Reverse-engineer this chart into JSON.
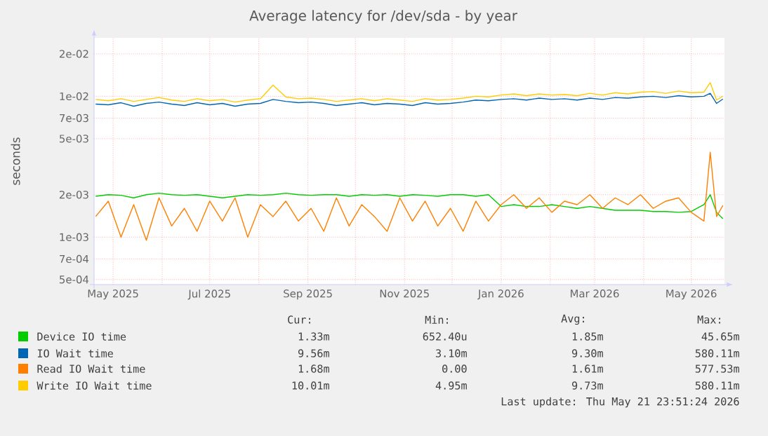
{
  "chart_data": {
    "type": "line",
    "title": "Average latency for /dev/sda - by year",
    "ylabel": "seconds",
    "log": true,
    "grid": true,
    "legend": "bottom",
    "marker": "none",
    "line_style": "solid",
    "xlim": [
      "2025-04-19",
      "2026-05-22"
    ],
    "xticks": [
      {
        "value": "2025-05-01",
        "label": "May 2025"
      },
      {
        "value": "2025-06-01",
        "label": null
      },
      {
        "value": "2025-07-01",
        "label": "Jul 2025"
      },
      {
        "value": "2025-08-01",
        "label": null
      },
      {
        "value": "2025-09-01",
        "label": "Sep 2025"
      },
      {
        "value": "2025-10-01",
        "label": null
      },
      {
        "value": "2025-11-01",
        "label": "Nov 2025"
      },
      {
        "value": "2025-12-01",
        "label": null
      },
      {
        "value": "2026-01-01",
        "label": "Jan 2026"
      },
      {
        "value": "2026-02-01",
        "label": null
      },
      {
        "value": "2026-03-01",
        "label": "Mar 2026"
      },
      {
        "value": "2026-04-01",
        "label": null
      },
      {
        "value": "2026-05-01",
        "label": "May 2026"
      }
    ],
    "ylim": [
      0.00046,
      0.026
    ],
    "yticks": [
      {
        "value": 0.0005,
        "label": "5e-04"
      },
      {
        "value": 0.0007,
        "label": "7e-04"
      },
      {
        "value": 0.001,
        "label": "1e-03"
      },
      {
        "value": 0.002,
        "label": "2e-03"
      },
      {
        "value": 0.005,
        "label": "5e-03"
      },
      {
        "value": 0.007,
        "label": "7e-03"
      },
      {
        "value": 0.01,
        "label": "1e-02"
      },
      {
        "value": 0.02,
        "label": "2e-02"
      }
    ],
    "x": [
      "2025-04-20",
      "2025-04-28",
      "2025-05-06",
      "2025-05-14",
      "2025-05-22",
      "2025-05-30",
      "2025-06-07",
      "2025-06-15",
      "2025-06-23",
      "2025-07-01",
      "2025-07-09",
      "2025-07-17",
      "2025-07-25",
      "2025-08-02",
      "2025-08-10",
      "2025-08-18",
      "2025-08-26",
      "2025-09-03",
      "2025-09-11",
      "2025-09-19",
      "2025-09-27",
      "2025-10-05",
      "2025-10-13",
      "2025-10-21",
      "2025-10-29",
      "2025-11-06",
      "2025-11-14",
      "2025-11-22",
      "2025-11-30",
      "2025-12-08",
      "2025-12-16",
      "2025-12-24",
      "2026-01-01",
      "2026-01-09",
      "2026-01-17",
      "2026-01-25",
      "2026-02-02",
      "2026-02-10",
      "2026-02-18",
      "2026-02-26",
      "2026-03-06",
      "2026-03-14",
      "2026-03-22",
      "2026-03-30",
      "2026-04-07",
      "2026-04-15",
      "2026-04-23",
      "2026-05-01",
      "2026-05-09",
      "2026-05-13",
      "2026-05-17",
      "2026-05-21"
    ],
    "series": [
      {
        "name": "Device IO time",
        "color": "#00cc00",
        "values": [
          0.00195,
          0.002,
          0.00198,
          0.0019,
          0.002,
          0.00205,
          0.002,
          0.00198,
          0.002,
          0.00195,
          0.0019,
          0.00195,
          0.002,
          0.00198,
          0.002,
          0.00205,
          0.002,
          0.00198,
          0.002,
          0.002,
          0.00195,
          0.002,
          0.00198,
          0.002,
          0.00195,
          0.002,
          0.00198,
          0.00195,
          0.002,
          0.002,
          0.00195,
          0.002,
          0.00165,
          0.0017,
          0.00165,
          0.00165,
          0.0017,
          0.00165,
          0.0016,
          0.00165,
          0.0016,
          0.00155,
          0.00155,
          0.00155,
          0.00152,
          0.00152,
          0.0015,
          0.00152,
          0.0017,
          0.002,
          0.0015,
          0.00135
        ]
      },
      {
        "name": "IO Wait time",
        "color": "#0066b3",
        "values": [
          0.0088,
          0.0087,
          0.009,
          0.0085,
          0.0089,
          0.0091,
          0.0088,
          0.0086,
          0.009,
          0.0087,
          0.0089,
          0.0085,
          0.0088,
          0.0089,
          0.0095,
          0.0092,
          0.009,
          0.0091,
          0.0089,
          0.0086,
          0.0088,
          0.009,
          0.0087,
          0.0089,
          0.0088,
          0.0086,
          0.009,
          0.0088,
          0.0089,
          0.0091,
          0.0094,
          0.0093,
          0.0095,
          0.0096,
          0.0094,
          0.0097,
          0.0095,
          0.0096,
          0.0094,
          0.0097,
          0.0095,
          0.0098,
          0.0097,
          0.0099,
          0.01,
          0.0098,
          0.0101,
          0.0099,
          0.01,
          0.0105,
          0.0089,
          0.00956
        ]
      },
      {
        "name": "Read IO Wait time",
        "color": "#ff8000",
        "values": [
          0.0014,
          0.0018,
          0.001,
          0.0017,
          0.00095,
          0.0019,
          0.0012,
          0.0016,
          0.0011,
          0.0018,
          0.0013,
          0.0019,
          0.001,
          0.0017,
          0.0014,
          0.0018,
          0.0013,
          0.0016,
          0.0011,
          0.0019,
          0.0012,
          0.0017,
          0.0014,
          0.0011,
          0.0019,
          0.0013,
          0.0018,
          0.0012,
          0.0016,
          0.0011,
          0.0018,
          0.0013,
          0.0017,
          0.002,
          0.0016,
          0.0019,
          0.0015,
          0.0018,
          0.0017,
          0.002,
          0.0016,
          0.0019,
          0.0017,
          0.002,
          0.0016,
          0.0018,
          0.0019,
          0.0015,
          0.0013,
          0.004,
          0.0014,
          0.00168
        ]
      },
      {
        "name": "Write IO Wait time",
        "color": "#ffcc00",
        "values": [
          0.0095,
          0.0093,
          0.0096,
          0.0092,
          0.0095,
          0.0098,
          0.0094,
          0.0092,
          0.0096,
          0.0093,
          0.0095,
          0.0091,
          0.0094,
          0.0096,
          0.012,
          0.0099,
          0.0096,
          0.0097,
          0.0095,
          0.0092,
          0.0094,
          0.0096,
          0.0093,
          0.0096,
          0.0094,
          0.0092,
          0.0096,
          0.0094,
          0.0095,
          0.0097,
          0.01,
          0.0099,
          0.0102,
          0.0104,
          0.0101,
          0.0104,
          0.0102,
          0.0103,
          0.0101,
          0.0105,
          0.0102,
          0.0106,
          0.0104,
          0.0107,
          0.0108,
          0.0105,
          0.0109,
          0.0106,
          0.0107,
          0.0125,
          0.0094,
          0.01001
        ]
      }
    ],
    "annotations": [
      "Cur:",
      "Min:",
      "Avg:",
      "Max:",
      "1.33m",
      "652.40u",
      "1.85m",
      "45.65m",
      "9.56m",
      "3.10m",
      "9.30m",
      "580.11m",
      "1.68m",
      "0.00",
      "1.61m",
      "577.53m",
      "10.01m",
      "4.95m",
      "9.73m",
      "580.11m",
      "Last update: Thu May 21 23:51:24 2026"
    ]
  }
}
